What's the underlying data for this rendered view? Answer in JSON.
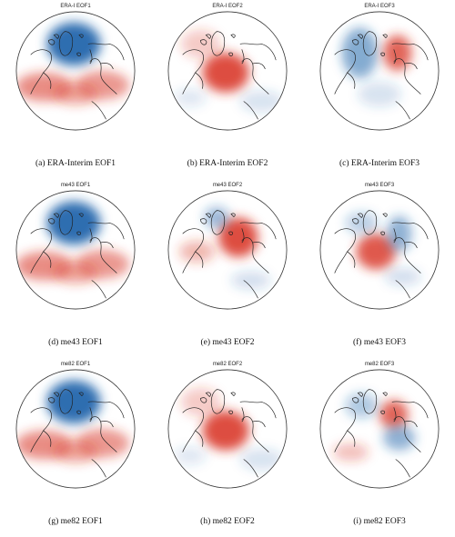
{
  "panels": [
    {
      "map_title": "ERA-I EOF1",
      "caption": "(a) ERA-Interim EOF1",
      "pattern": "eof1"
    },
    {
      "map_title": "ERA-I EOF2",
      "caption": "(b) ERA-Interim EOF2",
      "pattern": "eof2"
    },
    {
      "map_title": "ERA-I EOF3",
      "caption": "(c) ERA-Interim EOF3",
      "pattern": "eof3"
    },
    {
      "map_title": "me43 EOF1",
      "caption": "(d) me43 EOF1",
      "pattern": "eof1"
    },
    {
      "map_title": "me43 EOF2",
      "caption": "(e) me43 EOF2",
      "pattern": "eof2b"
    },
    {
      "map_title": "me43 EOF3",
      "caption": "(f) me43 EOF3",
      "pattern": "eof3b"
    },
    {
      "map_title": "me82 EOF1",
      "caption": "(g) me82 EOF1",
      "pattern": "eof1"
    },
    {
      "map_title": "me82 EOF2",
      "caption": "(h) me82 EOF2",
      "pattern": "eof2"
    },
    {
      "map_title": "me82 EOF3",
      "caption": "(i) me82 EOF3",
      "pattern": "eof3c"
    }
  ],
  "colors": {
    "positive": "#d7301f",
    "negative": "#2166ac",
    "coast": "#222222"
  }
}
